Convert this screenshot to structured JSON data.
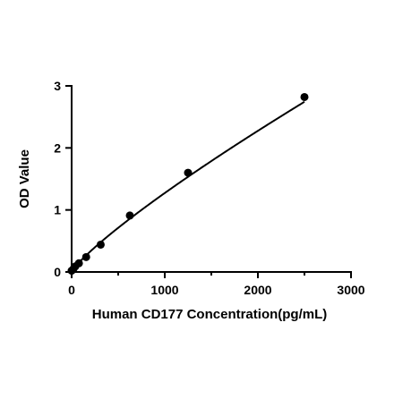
{
  "chart_data": {
    "type": "scatter",
    "title": "",
    "xlabel": "Human CD177 Concentration(pg/mL)",
    "ylabel": "OD Value",
    "xlim": [
      0,
      3000
    ],
    "ylim": [
      0,
      3
    ],
    "x_ticks": [
      0,
      1000,
      2000,
      3000
    ],
    "y_ticks": [
      0,
      1,
      2,
      3
    ],
    "grid": false,
    "legend": "none",
    "series": [
      {
        "x": [
          0,
          19.5,
          39,
          78,
          156,
          312,
          625,
          1250,
          2500
        ],
        "y": [
          0.02,
          0.05,
          0.09,
          0.14,
          0.24,
          0.44,
          0.91,
          1.6,
          2.82
        ]
      }
    ],
    "fit_curve": true,
    "colors": {
      "marker": "#000000",
      "line": "#000000",
      "axis": "#000000"
    }
  }
}
